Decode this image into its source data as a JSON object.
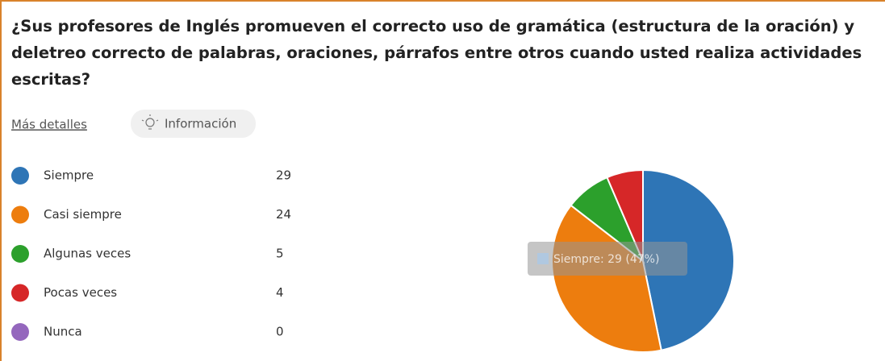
{
  "chart_data": {
    "type": "pie",
    "title": "¿Sus profesores de Inglés promueven el correcto uso de gramática (estructura de la oración) y deletreo correcto de palabras, oraciones, párrafos entre otros cuando usted realiza actividades escritas?",
    "more_details": "Más detalles",
    "info_button": "Información",
    "categories": [
      "Siempre",
      "Casi siempre",
      "Algunas veces",
      "Pocas veces",
      "Nunca"
    ],
    "values": [
      29,
      24,
      5,
      4,
      0
    ],
    "colors": [
      "#2e75b6",
      "#ed7d0e",
      "#2ca02c",
      "#d62728",
      "#9467bd"
    ],
    "tooltip": "Siempre: 29 (47%)"
  }
}
